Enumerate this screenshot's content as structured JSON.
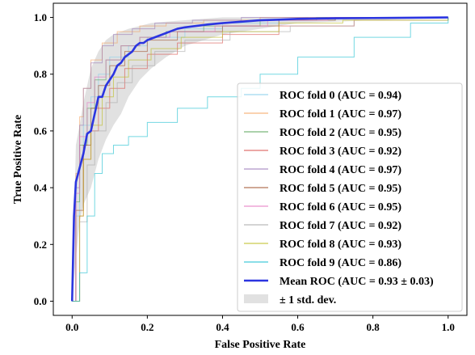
{
  "chart_data": {
    "type": "line",
    "xlabel": "False Positive Rate",
    "ylabel": "True Positive Rate",
    "xlim": [
      -0.05,
      1.05
    ],
    "ylim": [
      -0.05,
      1.05
    ],
    "xticks": [
      "0.0",
      "0.2",
      "0.4",
      "0.6",
      "0.8",
      "1.0"
    ],
    "yticks": [
      "0.0",
      "0.2",
      "0.4",
      "0.6",
      "0.8",
      "1.0"
    ],
    "grid": false,
    "legend_position": "lower-right",
    "series": [
      {
        "name": "ROC fold 0 (AUC = 0.94)",
        "color": "#87ceeb",
        "x": [
          0,
          0.01,
          0.02,
          0.03,
          0.05,
          0.07,
          0.1,
          0.15,
          0.2,
          0.3,
          0.4,
          0.55,
          0.7,
          1.0
        ],
        "y": [
          0,
          0.3,
          0.5,
          0.62,
          0.72,
          0.8,
          0.86,
          0.9,
          0.93,
          0.96,
          0.98,
          0.99,
          1.0,
          1.0
        ]
      },
      {
        "name": "ROC fold 1 (AUC = 0.97)",
        "color": "#f4a460",
        "x": [
          0,
          0.01,
          0.02,
          0.03,
          0.05,
          0.08,
          0.12,
          0.18,
          0.25,
          0.35,
          0.5,
          1.0
        ],
        "y": [
          0,
          0.45,
          0.65,
          0.75,
          0.85,
          0.91,
          0.95,
          0.97,
          0.98,
          0.99,
          1.0,
          1.0
        ]
      },
      {
        "name": "ROC fold 2 (AUC = 0.95)",
        "color": "#5aa65a",
        "x": [
          0,
          0.01,
          0.02,
          0.04,
          0.06,
          0.09,
          0.13,
          0.18,
          0.25,
          0.35,
          0.5,
          0.65,
          1.0
        ],
        "y": [
          0,
          0.35,
          0.55,
          0.68,
          0.78,
          0.85,
          0.9,
          0.93,
          0.95,
          0.97,
          0.99,
          1.0,
          1.0
        ]
      },
      {
        "name": "ROC fold 3 (AUC = 0.92)",
        "color": "#d9534f",
        "x": [
          0,
          0.02,
          0.03,
          0.05,
          0.07,
          0.1,
          0.14,
          0.2,
          0.28,
          0.4,
          0.55,
          0.75,
          1.0
        ],
        "y": [
          0,
          0.3,
          0.5,
          0.6,
          0.68,
          0.75,
          0.82,
          0.87,
          0.91,
          0.94,
          0.97,
          0.99,
          1.0
        ]
      },
      {
        "name": "ROC fold 4 (AUC = 0.97)",
        "color": "#9b7bb8",
        "x": [
          0,
          0.01,
          0.02,
          0.03,
          0.05,
          0.08,
          0.11,
          0.16,
          0.22,
          0.32,
          0.45,
          1.0
        ],
        "y": [
          0,
          0.4,
          0.62,
          0.75,
          0.84,
          0.9,
          0.94,
          0.96,
          0.98,
          0.99,
          1.0,
          1.0
        ]
      },
      {
        "name": "ROC fold 5 (AUC = 0.95)",
        "color": "#a0522d",
        "x": [
          0,
          0.01,
          0.03,
          0.05,
          0.07,
          0.1,
          0.14,
          0.2,
          0.28,
          0.4,
          0.55,
          0.7,
          1.0
        ],
        "y": [
          0,
          0.32,
          0.55,
          0.68,
          0.76,
          0.83,
          0.88,
          0.92,
          0.95,
          0.97,
          0.99,
          1.0,
          1.0
        ]
      },
      {
        "name": "ROC fold 6 (AUC = 0.95)",
        "color": "#e377c2",
        "x": [
          0,
          0.01,
          0.02,
          0.04,
          0.06,
          0.09,
          0.13,
          0.18,
          0.26,
          0.38,
          0.52,
          0.68,
          1.0
        ],
        "y": [
          0,
          0.38,
          0.58,
          0.7,
          0.79,
          0.85,
          0.9,
          0.93,
          0.95,
          0.97,
          0.99,
          1.0,
          1.0
        ]
      },
      {
        "name": "ROC fold 7 (AUC = 0.92)",
        "color": "#a9a9a9",
        "x": [
          0,
          0.02,
          0.04,
          0.06,
          0.09,
          0.12,
          0.16,
          0.22,
          0.3,
          0.42,
          0.58,
          0.75,
          1.0
        ],
        "y": [
          0,
          0.28,
          0.48,
          0.6,
          0.7,
          0.77,
          0.83,
          0.88,
          0.92,
          0.95,
          0.97,
          0.99,
          1.0
        ]
      },
      {
        "name": "ROC fold 8 (AUC = 0.93)",
        "color": "#bcbd22",
        "x": [
          0,
          0.02,
          0.03,
          0.05,
          0.08,
          0.11,
          0.15,
          0.21,
          0.29,
          0.4,
          0.55,
          0.72,
          1.0
        ],
        "y": [
          0,
          0.3,
          0.5,
          0.62,
          0.72,
          0.79,
          0.85,
          0.89,
          0.93,
          0.95,
          0.98,
          0.99,
          1.0
        ]
      },
      {
        "name": "ROC fold 9 (AUC = 0.86)",
        "color": "#17becf",
        "x": [
          0,
          0.02,
          0.04,
          0.06,
          0.08,
          0.11,
          0.15,
          0.2,
          0.28,
          0.36,
          0.45,
          0.5,
          0.6,
          0.75,
          0.9,
          1.0
        ],
        "y": [
          0,
          0.1,
          0.3,
          0.45,
          0.52,
          0.55,
          0.58,
          0.63,
          0.68,
          0.72,
          0.75,
          0.8,
          0.86,
          0.93,
          0.98,
          1.0
        ]
      },
      {
        "name": "Mean ROC (AUC = 0.93 ± 0.03)",
        "color": "#2b35e0",
        "mean": true,
        "x": [
          0,
          0.005,
          0.01,
          0.02,
          0.03,
          0.04,
          0.05,
          0.06,
          0.07,
          0.08,
          0.09,
          0.1,
          0.11,
          0.12,
          0.13,
          0.14,
          0.15,
          0.16,
          0.17,
          0.18,
          0.19,
          0.2,
          0.22,
          0.24,
          0.26,
          0.28,
          0.3,
          0.33,
          0.36,
          0.4,
          0.45,
          0.5,
          0.55,
          0.6,
          0.7,
          0.8,
          0.9,
          1.0
        ],
        "y": [
          0,
          0.3,
          0.42,
          0.47,
          0.52,
          0.59,
          0.6,
          0.66,
          0.72,
          0.72,
          0.76,
          0.78,
          0.8,
          0.83,
          0.84,
          0.86,
          0.87,
          0.88,
          0.9,
          0.91,
          0.91,
          0.92,
          0.93,
          0.94,
          0.95,
          0.96,
          0.965,
          0.97,
          0.975,
          0.98,
          0.985,
          0.99,
          0.992,
          0.995,
          0.997,
          0.998,
          0.999,
          1.0
        ]
      },
      {
        "name": "± 1 std. dev.",
        "color": "#c8c8c8",
        "band": true,
        "x": [
          0,
          0.01,
          0.02,
          0.03,
          0.05,
          0.07,
          0.09,
          0.11,
          0.13,
          0.15,
          0.18,
          0.21,
          0.25,
          0.3,
          0.35,
          0.4,
          0.5,
          0.6,
          0.8,
          1.0
        ],
        "y_upper": [
          0,
          0.55,
          0.62,
          0.7,
          0.82,
          0.88,
          0.92,
          0.94,
          0.95,
          0.96,
          0.97,
          0.98,
          0.985,
          0.99,
          0.995,
          1.0,
          1.0,
          1.0,
          1.0,
          1.0
        ],
        "y_lower": [
          0,
          0.15,
          0.28,
          0.34,
          0.4,
          0.5,
          0.57,
          0.62,
          0.66,
          0.72,
          0.78,
          0.82,
          0.86,
          0.9,
          0.92,
          0.94,
          0.96,
          0.98,
          0.99,
          1.0
        ]
      }
    ]
  }
}
